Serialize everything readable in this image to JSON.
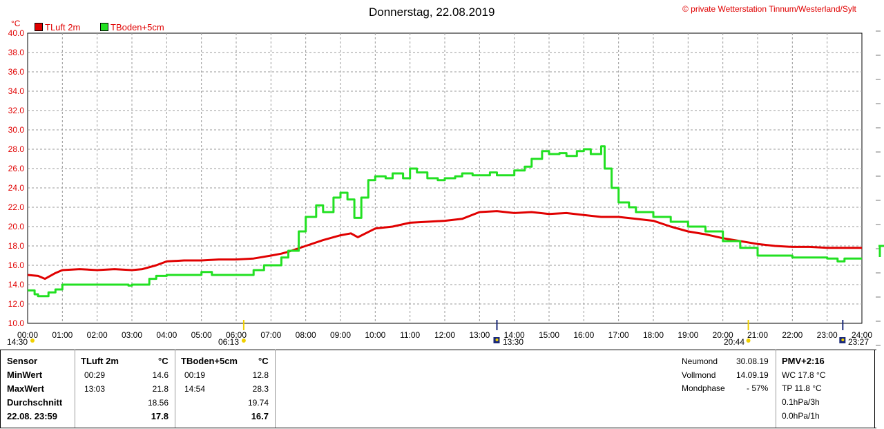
{
  "title": "Donnerstag, 22.08.2019",
  "copyright": "© private Wetterstation Tinnum/Westerland/Sylt",
  "y_unit": "°C",
  "legend": [
    {
      "label": "TLuft 2m",
      "color": "#e00000"
    },
    {
      "label": "TBoden+5cm",
      "color": "#22e022"
    }
  ],
  "sun_moon": {
    "sunrise": "06:13",
    "sunset": "20:44",
    "moonrise": "13:30",
    "moonset": "23:27",
    "left_label": "14:30"
  },
  "chart_data": {
    "type": "line",
    "xlabel": "",
    "ylabel": "°C",
    "xlim": [
      0,
      24
    ],
    "ylim": [
      10,
      40
    ],
    "x_ticks": [
      "00:00",
      "01:00",
      "02:00",
      "03:00",
      "04:00",
      "05:00",
      "06:00",
      "07:00",
      "08:00",
      "09:00",
      "10:00",
      "11:00",
      "12:00",
      "13:00",
      "14:00",
      "15:00",
      "16:00",
      "17:00",
      "18:00",
      "19:00",
      "20:00",
      "21:00",
      "22:00",
      "23:00",
      "24:00"
    ],
    "y_ticks": [
      "10.0",
      "12.0",
      "14.0",
      "16.0",
      "18.0",
      "20.0",
      "22.0",
      "24.0",
      "26.0",
      "28.0",
      "30.0",
      "32.0",
      "34.0",
      "36.0",
      "38.0",
      "40.0"
    ],
    "grid": true,
    "series": [
      {
        "name": "TLuft 2m",
        "color": "#e00000",
        "x": [
          0,
          0.3,
          0.5,
          0.8,
          1.0,
          1.5,
          2.0,
          2.5,
          3.0,
          3.3,
          3.7,
          4.0,
          4.5,
          5.0,
          5.5,
          6.0,
          6.5,
          7.0,
          7.3,
          7.5,
          8.0,
          8.5,
          9.0,
          9.3,
          9.5,
          10.0,
          10.5,
          11.0,
          11.5,
          12.0,
          12.5,
          13.0,
          13.5,
          14.0,
          14.5,
          15.0,
          15.5,
          16.0,
          16.5,
          17.0,
          17.5,
          18.0,
          18.5,
          19.0,
          19.5,
          20.0,
          20.5,
          21.0,
          21.5,
          22.0,
          22.5,
          23.0,
          23.5,
          24.0
        ],
        "y": [
          15.0,
          14.9,
          14.6,
          15.2,
          15.5,
          15.6,
          15.5,
          15.6,
          15.5,
          15.6,
          16.0,
          16.4,
          16.5,
          16.5,
          16.6,
          16.6,
          16.7,
          17.0,
          17.2,
          17.4,
          18.0,
          18.6,
          19.1,
          19.3,
          18.9,
          19.8,
          20.0,
          20.4,
          20.5,
          20.6,
          20.8,
          21.5,
          21.6,
          21.4,
          21.5,
          21.3,
          21.4,
          21.2,
          21.0,
          21.0,
          20.8,
          20.6,
          20.0,
          19.5,
          19.2,
          18.8,
          18.5,
          18.2,
          18.0,
          17.9,
          17.9,
          17.8,
          17.8,
          17.8
        ]
      },
      {
        "name": "TBoden+5cm",
        "color": "#22e022",
        "x": [
          0,
          0.2,
          0.3,
          0.6,
          0.8,
          1.0,
          1.5,
          2.0,
          2.5,
          2.9,
          3.0,
          3.3,
          3.5,
          3.7,
          4.0,
          4.5,
          5.0,
          5.3,
          5.5,
          6.0,
          6.5,
          6.8,
          7.0,
          7.3,
          7.5,
          7.8,
          8.0,
          8.3,
          8.5,
          8.8,
          9.0,
          9.2,
          9.4,
          9.5,
          9.6,
          9.8,
          10.0,
          10.3,
          10.5,
          10.8,
          11.0,
          11.2,
          11.5,
          11.8,
          12.0,
          12.3,
          12.5,
          12.8,
          13.0,
          13.3,
          13.5,
          14.0,
          14.3,
          14.5,
          14.8,
          15.0,
          15.3,
          15.5,
          15.8,
          16.0,
          16.2,
          16.5,
          16.6,
          16.8,
          17.0,
          17.3,
          17.5,
          18.0,
          18.5,
          19.0,
          19.5,
          20.0,
          20.5,
          21.0,
          21.5,
          22.0,
          22.5,
          23.0,
          23.3,
          23.5,
          24.0
        ],
        "y": [
          13.4,
          13.0,
          12.8,
          13.2,
          13.5,
          14.0,
          14.0,
          14.0,
          14.0,
          13.9,
          14.0,
          14.0,
          14.6,
          14.9,
          15.0,
          15.0,
          15.3,
          15.0,
          15.0,
          15.0,
          15.5,
          16.0,
          16.0,
          16.8,
          17.5,
          19.5,
          21.0,
          22.2,
          21.5,
          23.0,
          23.5,
          22.8,
          20.9,
          20.9,
          23.0,
          24.8,
          25.2,
          25.0,
          25.5,
          25.0,
          26.0,
          25.6,
          25.0,
          24.8,
          25.0,
          25.2,
          25.5,
          25.3,
          25.3,
          25.6,
          25.3,
          25.8,
          26.2,
          27.0,
          27.8,
          27.5,
          27.6,
          27.3,
          27.8,
          28.0,
          27.5,
          28.3,
          26.0,
          24.0,
          22.5,
          22.0,
          21.5,
          21.0,
          20.5,
          20.0,
          19.5,
          18.5,
          17.8,
          17.0,
          17.0,
          16.8,
          16.8,
          16.7,
          16.4,
          16.7,
          16.7
        ]
      }
    ]
  },
  "table": {
    "headers": {
      "sensor": "Sensor",
      "s1": "TLuft 2m",
      "s1_unit": "°C",
      "s2": "TBoden+5cm",
      "s2_unit": "°C"
    },
    "rows": [
      {
        "label": "MinWert",
        "t1": "00:29",
        "v1": "14.6",
        "t2": "00:19",
        "v2": "12.8"
      },
      {
        "label": "MaxWert",
        "t1": "13:03",
        "v1": "21.8",
        "t2": "14:54",
        "v2": "28.3"
      },
      {
        "label": "Durchschnitt",
        "t1": "",
        "v1": "18.56",
        "t2": "",
        "v2": "19.74"
      },
      {
        "label": "22.08. 23:59",
        "t1": "",
        "v1": "17.8",
        "t2": "",
        "v2": "16.7"
      }
    ],
    "moon": [
      {
        "label": "Neumond",
        "value": "30.08.19"
      },
      {
        "label": "Vollmond",
        "value": "14.09.19"
      },
      {
        "label": "Mondphase",
        "value": "- 57%"
      }
    ],
    "pmv": {
      "title": "PMV+2:16",
      "wc": "WC 17.8 °C",
      "tp": "TP 11.8 °C",
      "p3h": "0.1hPa/3h",
      "p1h": "0.0hPa/1h"
    }
  }
}
